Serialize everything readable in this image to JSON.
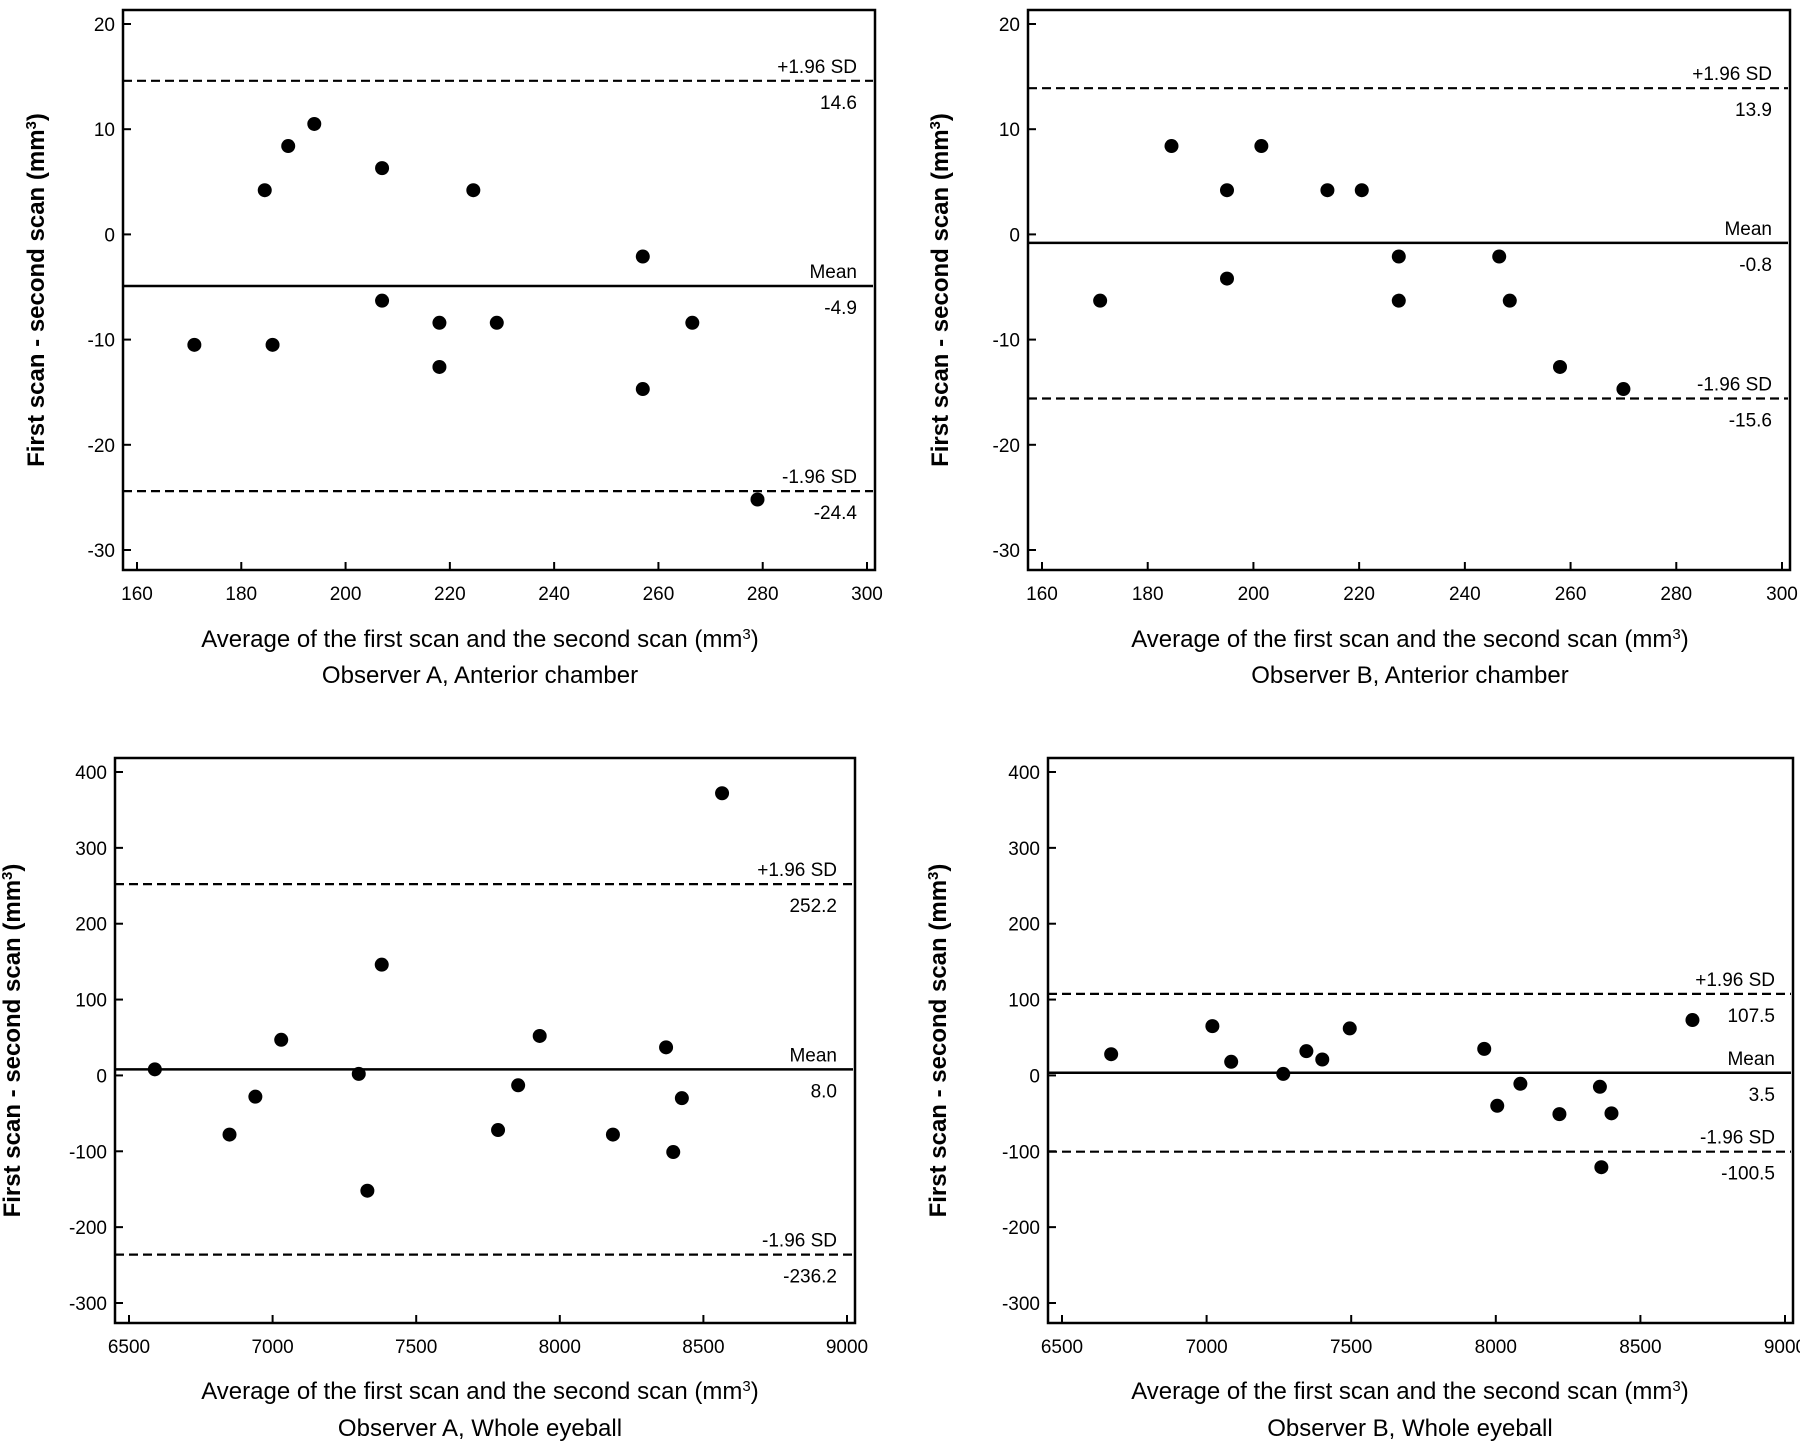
{
  "chart_data": [
    {
      "type": "scatter",
      "title": "Observer A, Anterior chamber",
      "xlabel": "Average of the first scan and the second scan (mm3)",
      "ylabel": "First scan - second scan (mm3)",
      "xlim": [
        160,
        300
      ],
      "ylim": [
        -30,
        20
      ],
      "xticks": [
        160,
        180,
        200,
        220,
        240,
        260,
        280,
        300
      ],
      "yticks": [
        -30,
        -20,
        -10,
        0,
        10,
        20
      ],
      "grid": false,
      "series": [
        {
          "x": [
            171,
            184.5,
            186,
            189,
            194,
            207,
            207,
            218,
            218,
            224.5,
            229,
            257,
            257,
            266.5,
            279
          ],
          "y": [
            -10.5,
            4.2,
            -10.5,
            8.4,
            10.5,
            6.3,
            -6.3,
            -8.4,
            -12.6,
            4.2,
            -8.4,
            -2.1,
            -14.7,
            -8.4,
            -25.2
          ]
        }
      ],
      "reference_lines": [
        {
          "y": 14.6,
          "style": "dashed",
          "label": "+1.96 SD",
          "value": "14.6"
        },
        {
          "y": -4.9,
          "style": "solid",
          "label": "Mean",
          "value": "-4.9"
        },
        {
          "y": -24.4,
          "style": "dashed",
          "label": "-1.96 SD",
          "value": "-24.4"
        }
      ]
    },
    {
      "type": "scatter",
      "title": "Observer B, Anterior chamber",
      "xlabel": "Average of the first scan and the second scan (mm3)",
      "ylabel": "First scan - second scan (mm3)",
      "xlim": [
        160,
        300
      ],
      "ylim": [
        -30,
        20
      ],
      "xticks": [
        160,
        180,
        200,
        220,
        240,
        260,
        280,
        300
      ],
      "yticks": [
        -30,
        -20,
        -10,
        0,
        10,
        20
      ],
      "grid": false,
      "series": [
        {
          "x": [
            171,
            184.5,
            195,
            195,
            201.5,
            214,
            220.5,
            227.5,
            227.5,
            246.5,
            248.5,
            258,
            270
          ],
          "y": [
            -6.3,
            8.4,
            4.2,
            -4.2,
            8.4,
            4.2,
            4.2,
            -2.1,
            -6.3,
            -2.1,
            -6.3,
            -12.6,
            -14.7
          ]
        }
      ],
      "reference_lines": [
        {
          "y": 13.9,
          "style": "dashed",
          "label": "+1.96 SD",
          "value": "13.9"
        },
        {
          "y": -0.8,
          "style": "solid",
          "label": "Mean",
          "value": "-0.8"
        },
        {
          "y": -15.6,
          "style": "dashed",
          "label": "-1.96 SD",
          "value": "-15.6"
        }
      ]
    },
    {
      "type": "scatter",
      "title": "Observer A, Whole eyeball",
      "xlabel": "Average of the first scan and the second scan (mm3)",
      "ylabel": "First scan - second scan (mm3)",
      "xlim": [
        6500,
        9000
      ],
      "ylim": [
        -300,
        400
      ],
      "xticks": [
        6500,
        7000,
        7500,
        8000,
        8500,
        9000
      ],
      "yticks": [
        -300,
        -200,
        -100,
        0,
        100,
        200,
        300,
        400
      ],
      "grid": false,
      "series": [
        {
          "x": [
            6590,
            6850,
            6940,
            7030,
            7300,
            7330,
            7380,
            7785,
            7855,
            7930,
            8185,
            8370,
            8395,
            8425,
            8565
          ],
          "y": [
            8,
            -78,
            -28,
            47,
            2,
            -152,
            146,
            -72,
            -13,
            52,
            -78,
            37,
            -101,
            -30,
            372
          ]
        }
      ],
      "reference_lines": [
        {
          "y": 252.2,
          "style": "dashed",
          "label": "+1.96 SD",
          "value": "252.2"
        },
        {
          "y": 8.0,
          "style": "solid",
          "label": "Mean",
          "value": "8.0"
        },
        {
          "y": -236.2,
          "style": "dashed",
          "label": "-1.96 SD",
          "value": "-236.2"
        }
      ]
    },
    {
      "type": "scatter",
      "title": "Observer B, Whole eyeball",
      "xlabel": "Average of the first scan and the second scan (mm3)",
      "ylabel": "First scan - second scan (mm3)",
      "xlim": [
        6500,
        9000
      ],
      "ylim": [
        -300,
        400
      ],
      "xticks": [
        6500,
        7000,
        7500,
        8000,
        8500,
        9000
      ],
      "yticks": [
        -300,
        -200,
        -100,
        0,
        100,
        200,
        300,
        400
      ],
      "grid": false,
      "series": [
        {
          "x": [
            6670,
            7020,
            7085,
            7265,
            7345,
            7400,
            7495,
            7960,
            8005,
            8085,
            8220,
            8360,
            8365,
            8400,
            8680
          ],
          "y": [
            28,
            65,
            18,
            2,
            32,
            21,
            62,
            35,
            -40,
            -11,
            -51,
            -15,
            -121,
            -50,
            73
          ]
        }
      ],
      "reference_lines": [
        {
          "y": 107.5,
          "style": "dashed",
          "label": "+1.96 SD",
          "value": "107.5"
        },
        {
          "y": 3.5,
          "style": "solid",
          "label": "Mean",
          "value": "3.5"
        },
        {
          "y": -100.5,
          "style": "dashed",
          "label": "-1.96 SD",
          "value": "-100.5"
        }
      ]
    }
  ]
}
